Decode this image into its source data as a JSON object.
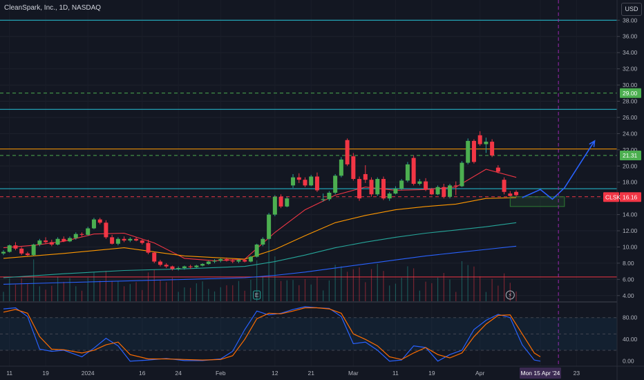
{
  "header": {
    "symbol_title": "CleanSpark, Inc., 1D, NASDAQ",
    "currency_label": "USD"
  },
  "chart_data": {
    "type": "candlestick",
    "ticker": "CLSK",
    "price_axis": {
      "ticks": [
        "38.00",
        "36.00",
        "34.00",
        "32.00",
        "30.00",
        "28.00",
        "26.00",
        "24.00",
        "22.00",
        "20.00",
        "18.00",
        "16.00",
        "14.00",
        "12.00",
        "10.00",
        "8.00",
        "6.00",
        "4.00"
      ],
      "range": [
        3.3,
        40.5
      ]
    },
    "time_axis": {
      "labels": [
        "11",
        "19",
        "2024",
        "16",
        "24",
        "Feb",
        "12",
        "21",
        "Mar",
        "11",
        "19",
        "Apr",
        "Mon 15 Apr '24",
        "23"
      ],
      "label_bar_index": [
        1,
        7,
        14,
        23,
        29,
        36,
        45,
        51,
        58,
        65,
        71,
        79,
        89,
        95
      ]
    },
    "candles": [
      [
        9.2,
        9.6,
        9.0,
        9.4
      ],
      [
        9.4,
        10.3,
        9.3,
        10.2
      ],
      [
        10.2,
        10.6,
        9.6,
        9.8
      ],
      [
        9.8,
        10.0,
        9.0,
        9.2
      ],
      [
        9.2,
        9.4,
        8.9,
        9.0
      ],
      [
        9.0,
        10.4,
        8.9,
        10.3
      ],
      [
        10.3,
        11.0,
        10.1,
        10.8
      ],
      [
        10.8,
        11.2,
        10.4,
        10.6
      ],
      [
        10.6,
        10.9,
        10.1,
        10.3
      ],
      [
        10.3,
        11.2,
        10.2,
        11.0
      ],
      [
        11.0,
        11.3,
        10.6,
        10.7
      ],
      [
        10.7,
        11.3,
        10.6,
        11.1
      ],
      [
        11.1,
        11.8,
        10.9,
        11.6
      ],
      [
        11.6,
        11.8,
        11.3,
        11.5
      ],
      [
        11.5,
        12.5,
        11.4,
        12.3
      ],
      [
        12.3,
        13.6,
        12.2,
        13.4
      ],
      [
        13.4,
        13.6,
        12.8,
        13.0
      ],
      [
        13.0,
        13.3,
        11.0,
        11.2
      ],
      [
        11.2,
        11.5,
        10.3,
        10.4
      ],
      [
        10.4,
        11.2,
        10.2,
        11.0
      ],
      [
        11.0,
        11.3,
        10.6,
        10.8
      ],
      [
        10.8,
        11.2,
        10.6,
        11.0
      ],
      [
        11.0,
        11.2,
        10.7,
        10.8
      ],
      [
        10.8,
        11.0,
        10.3,
        10.5
      ],
      [
        10.5,
        10.9,
        9.1,
        9.3
      ],
      [
        9.3,
        9.4,
        8.0,
        8.2
      ],
      [
        8.2,
        8.4,
        7.6,
        7.8
      ],
      [
        7.8,
        8.0,
        7.4,
        7.6
      ],
      [
        7.6,
        7.7,
        7.1,
        7.3
      ],
      [
        7.3,
        7.6,
        7.1,
        7.4
      ],
      [
        7.4,
        7.7,
        7.2,
        7.6
      ],
      [
        7.6,
        7.8,
        7.3,
        7.5
      ],
      [
        7.5,
        7.8,
        7.4,
        7.7
      ],
      [
        7.7,
        8.0,
        7.6,
        7.9
      ],
      [
        7.9,
        8.3,
        7.8,
        8.2
      ],
      [
        8.2,
        8.5,
        8.0,
        8.3
      ],
      [
        8.3,
        8.6,
        8.1,
        8.5
      ],
      [
        8.5,
        8.7,
        8.2,
        8.3
      ],
      [
        8.3,
        8.5,
        8.0,
        8.2
      ],
      [
        8.2,
        8.5,
        8.0,
        8.4
      ],
      [
        8.4,
        8.6,
        8.1,
        8.2
      ],
      [
        8.2,
        8.9,
        8.1,
        8.8
      ],
      [
        8.8,
        10.4,
        8.7,
        10.3
      ],
      [
        10.3,
        11.2,
        10.1,
        11.0
      ],
      [
        11.0,
        14.2,
        10.9,
        14.0
      ],
      [
        14.0,
        16.4,
        13.8,
        16.2
      ],
      [
        16.2,
        16.5,
        14.8,
        15.0
      ],
      [
        15.0,
        16.2,
        14.9,
        16.0
      ],
      [
        17.6,
        19.0,
        17.3,
        18.6
      ],
      [
        18.6,
        19.1,
        17.9,
        18.3
      ],
      [
        18.3,
        18.6,
        17.4,
        17.6
      ],
      [
        17.6,
        18.9,
        17.5,
        18.7
      ],
      [
        18.7,
        19.2,
        16.8,
        17.0
      ],
      [
        15.8,
        16.6,
        15.6,
        15.9
      ],
      [
        15.9,
        16.9,
        15.7,
        16.7
      ],
      [
        16.7,
        19.0,
        16.5,
        18.8
      ],
      [
        18.8,
        21.1,
        18.6,
        20.8
      ],
      [
        23.2,
        23.4,
        20.0,
        20.2
      ],
      [
        21.2,
        21.6,
        18.2,
        18.4
      ],
      [
        18.4,
        18.7,
        15.7,
        16.0
      ],
      [
        19.0,
        20.1,
        17.9,
        18.3
      ],
      [
        18.3,
        18.6,
        16.2,
        16.5
      ],
      [
        16.5,
        18.6,
        16.3,
        18.4
      ],
      [
        18.4,
        18.7,
        15.8,
        16.0
      ],
      [
        16.0,
        16.8,
        15.7,
        16.6
      ],
      [
        16.6,
        17.5,
        16.5,
        17.2
      ],
      [
        17.2,
        18.4,
        17.0,
        18.2
      ],
      [
        18.2,
        20.5,
        18.0,
        20.2
      ],
      [
        21.0,
        21.3,
        17.6,
        17.8
      ],
      [
        17.8,
        18.4,
        17.6,
        18.1
      ],
      [
        18.1,
        18.5,
        16.9,
        17.1
      ],
      [
        17.1,
        17.3,
        16.4,
        16.5
      ],
      [
        16.5,
        17.6,
        16.4,
        17.4
      ],
      [
        17.4,
        17.8,
        16.0,
        16.2
      ],
      [
        16.2,
        17.8,
        16.0,
        17.6
      ],
      [
        17.6,
        18.1,
        16.4,
        17.5
      ],
      [
        17.5,
        20.6,
        17.4,
        20.4
      ],
      [
        20.4,
        23.4,
        20.2,
        23.1
      ],
      [
        23.1,
        23.3,
        20.3,
        20.5
      ],
      [
        23.8,
        24.3,
        22.5,
        22.7
      ],
      [
        22.7,
        23.5,
        21.6,
        23.0
      ],
      [
        23.0,
        23.3,
        21.1,
        21.3
      ],
      [
        19.8,
        20.1,
        19.1,
        19.3
      ],
      [
        18.3,
        18.6,
        16.5,
        16.8
      ],
      [
        16.6,
        16.9,
        16.1,
        16.3
      ],
      [
        16.8,
        17.0,
        16.2,
        16.4
      ]
    ],
    "moving_averages": [
      {
        "color": "#f23645",
        "values": [
          [
            0,
            9.9
          ],
          [
            5,
            10.2
          ],
          [
            10,
            10.7
          ],
          [
            15,
            11.6
          ],
          [
            20,
            11.7
          ],
          [
            25,
            10.5
          ],
          [
            30,
            8.6
          ],
          [
            35,
            8.3
          ],
          [
            40,
            8.5
          ],
          [
            45,
            11.8
          ],
          [
            50,
            14.6
          ],
          [
            55,
            16.4
          ],
          [
            60,
            17.4
          ],
          [
            65,
            17.0
          ],
          [
            70,
            17.1
          ],
          [
            75,
            17.4
          ],
          [
            80,
            19.6
          ],
          [
            85,
            18.6
          ]
        ]
      },
      {
        "color": "#ff9800",
        "values": [
          [
            0,
            8.6
          ],
          [
            10,
            9.2
          ],
          [
            20,
            9.9
          ],
          [
            30,
            8.9
          ],
          [
            40,
            8.5
          ],
          [
            45,
            9.7
          ],
          [
            50,
            11.4
          ],
          [
            55,
            13.0
          ],
          [
            60,
            13.9
          ],
          [
            65,
            14.6
          ],
          [
            70,
            15.0
          ],
          [
            75,
            15.3
          ],
          [
            80,
            16.0
          ],
          [
            85,
            16.1
          ]
        ]
      },
      {
        "color": "#26a69a",
        "values": [
          [
            0,
            6.2
          ],
          [
            10,
            6.7
          ],
          [
            20,
            7.1
          ],
          [
            30,
            7.3
          ],
          [
            40,
            7.6
          ],
          [
            45,
            8.2
          ],
          [
            50,
            9.0
          ],
          [
            55,
            9.9
          ],
          [
            60,
            10.6
          ],
          [
            65,
            11.2
          ],
          [
            70,
            11.7
          ],
          [
            75,
            12.1
          ],
          [
            80,
            12.5
          ],
          [
            85,
            13.0
          ]
        ]
      },
      {
        "color": "#2962ff",
        "values": [
          [
            0,
            5.4
          ],
          [
            10,
            5.6
          ],
          [
            20,
            5.8
          ],
          [
            30,
            6.0
          ],
          [
            40,
            6.2
          ],
          [
            45,
            6.5
          ],
          [
            50,
            6.9
          ],
          [
            55,
            7.4
          ],
          [
            60,
            7.9
          ],
          [
            65,
            8.4
          ],
          [
            70,
            8.9
          ],
          [
            75,
            9.3
          ],
          [
            80,
            9.7
          ],
          [
            85,
            10.1
          ]
        ]
      }
    ],
    "horizontal_lines": [
      {
        "price": 38.0,
        "color": "#26c6da",
        "dash": false
      },
      {
        "price": 29.0,
        "color": "#4caf50",
        "dash": true
      },
      {
        "price": 27.0,
        "color": "#26c6da",
        "dash": false
      },
      {
        "price": 22.1,
        "color": "#ff9800",
        "dash": false
      },
      {
        "price": 21.3,
        "color": "#4caf50",
        "dash": true
      },
      {
        "price": 17.2,
        "color": "#26c6da",
        "dash": false
      },
      {
        "price": 16.2,
        "color": "#f23645",
        "dash": true
      },
      {
        "price": 6.3,
        "color": "#f23645",
        "dash": false
      }
    ],
    "price_tags": [
      {
        "label": "29.00",
        "price": 29.0,
        "color": "#4caf50"
      },
      {
        "label": "21.31",
        "price": 21.3,
        "color": "#4caf50"
      },
      {
        "label": "16.16",
        "price": 16.16,
        "color": "#f23645"
      }
    ],
    "last_price_symbol": "CLSK",
    "projection_path": [
      [
        86,
        16.1
      ],
      [
        89,
        17.1
      ],
      [
        91,
        15.9
      ],
      [
        93,
        17.3
      ],
      [
        98,
        23.1
      ]
    ],
    "projection_box": {
      "from_bar": 84,
      "to_bar": 93,
      "price_low": 15.0,
      "price_high": 16.2
    },
    "event_icons": [
      {
        "bar": 42,
        "label": "E"
      },
      {
        "bar": 84,
        "label": "⚡"
      }
    ],
    "current_date_bar": 92,
    "stochastic": {
      "ticks": [
        "80.00",
        "40.00",
        "0.00"
      ],
      "range": [
        -8,
        105
      ],
      "upper_band": 80,
      "lower_band": 20,
      "k": [
        [
          0,
          96
        ],
        [
          2,
          98
        ],
        [
          4,
          82
        ],
        [
          6,
          22
        ],
        [
          8,
          18
        ],
        [
          10,
          20
        ],
        [
          13,
          8
        ],
        [
          15,
          24
        ],
        [
          17,
          42
        ],
        [
          19,
          28
        ],
        [
          21,
          0
        ],
        [
          24,
          2
        ],
        [
          27,
          5
        ],
        [
          30,
          1
        ],
        [
          33,
          1
        ],
        [
          36,
          4
        ],
        [
          38,
          18
        ],
        [
          40,
          58
        ],
        [
          42,
          92
        ],
        [
          44,
          85
        ],
        [
          46,
          88
        ],
        [
          48,
          95
        ],
        [
          50,
          100
        ],
        [
          52,
          98
        ],
        [
          54,
          97
        ],
        [
          56,
          82
        ],
        [
          58,
          32
        ],
        [
          60,
          35
        ],
        [
          62,
          20
        ],
        [
          64,
          0
        ],
        [
          66,
          2
        ],
        [
          68,
          28
        ],
        [
          70,
          25
        ],
        [
          72,
          0
        ],
        [
          74,
          12
        ],
        [
          76,
          20
        ],
        [
          78,
          58
        ],
        [
          80,
          75
        ],
        [
          82,
          86
        ],
        [
          84,
          80
        ],
        [
          86,
          30
        ],
        [
          88,
          2
        ],
        [
          89,
          0
        ]
      ],
      "d": [
        [
          0,
          90
        ],
        [
          2,
          95
        ],
        [
          4,
          88
        ],
        [
          6,
          45
        ],
        [
          8,
          22
        ],
        [
          10,
          21
        ],
        [
          13,
          15
        ],
        [
          15,
          20
        ],
        [
          17,
          30
        ],
        [
          19,
          35
        ],
        [
          21,
          12
        ],
        [
          24,
          4
        ],
        [
          27,
          4
        ],
        [
          30,
          3
        ],
        [
          33,
          2
        ],
        [
          36,
          3
        ],
        [
          38,
          10
        ],
        [
          40,
          40
        ],
        [
          42,
          78
        ],
        [
          44,
          88
        ],
        [
          46,
          87
        ],
        [
          48,
          92
        ],
        [
          50,
          98
        ],
        [
          52,
          98
        ],
        [
          54,
          96
        ],
        [
          56,
          88
        ],
        [
          58,
          50
        ],
        [
          60,
          40
        ],
        [
          62,
          28
        ],
        [
          64,
          8
        ],
        [
          66,
          3
        ],
        [
          68,
          15
        ],
        [
          70,
          25
        ],
        [
          72,
          12
        ],
        [
          74,
          6
        ],
        [
          76,
          15
        ],
        [
          78,
          45
        ],
        [
          80,
          68
        ],
        [
          82,
          84
        ],
        [
          84,
          85
        ],
        [
          86,
          50
        ],
        [
          88,
          15
        ],
        [
          89,
          8
        ]
      ]
    },
    "volume_note": "vertical volume bars at bottom of price pane"
  }
}
